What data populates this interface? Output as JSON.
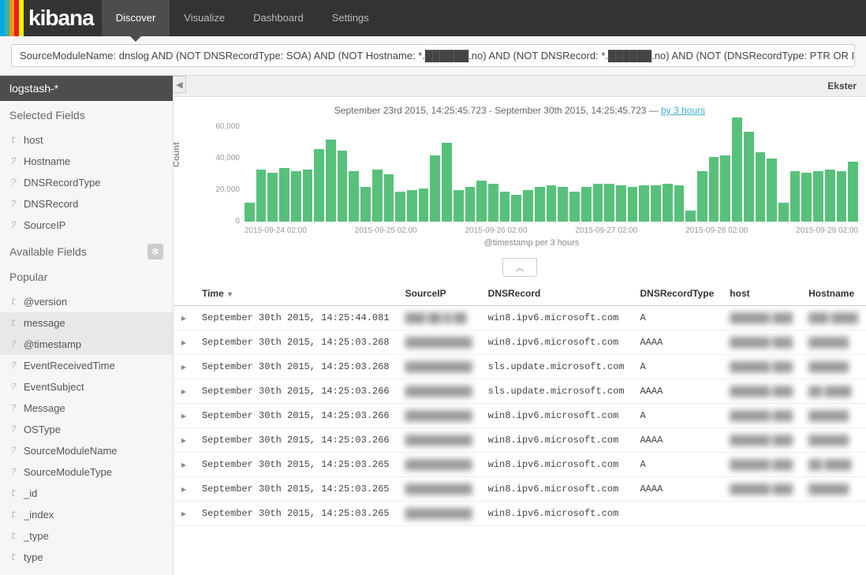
{
  "logo": {
    "stripes": [
      "#00a9e5",
      "#33b5a7",
      "#f7941e",
      "#ed1c24",
      "#fff200"
    ],
    "text": "kibana"
  },
  "nav": {
    "items": [
      "Discover",
      "Visualize",
      "Dashboard",
      "Settings"
    ],
    "activeIndex": 0
  },
  "query": "SourceModuleName: dnslog AND (NOT DNSRecordType: SOA) AND (NOT Hostname: *.██████.no) AND (NOT DNSRecord: *.██████.no) AND (NOT (DNSRecordType: PTR OR I",
  "indexPattern": "logstash-*",
  "subheader": {
    "right": "Ekster"
  },
  "sidebar": {
    "sections": {
      "selected": {
        "title": "Selected Fields",
        "items": [
          {
            "type": "t",
            "name": "host"
          },
          {
            "type": "?",
            "name": "Hostname"
          },
          {
            "type": "?",
            "name": "DNSRecordType"
          },
          {
            "type": "?",
            "name": "DNSRecord"
          },
          {
            "type": "?",
            "name": "SourceIP"
          }
        ]
      },
      "available": {
        "title": "Available Fields"
      },
      "popular": {
        "title": "Popular",
        "items": [
          {
            "type": "t",
            "name": "@version"
          },
          {
            "type": "t",
            "name": "message",
            "highlight": true
          },
          {
            "type": "?",
            "name": "@timestamp",
            "highlight": true
          },
          {
            "type": "?",
            "name": "EventReceivedTime"
          },
          {
            "type": "?",
            "name": "EventSubject"
          },
          {
            "type": "?",
            "name": "Message"
          },
          {
            "type": "?",
            "name": "OSType"
          },
          {
            "type": "?",
            "name": "SourceModuleName"
          },
          {
            "type": "?",
            "name": "SourceModuleType"
          },
          {
            "type": "t",
            "name": "_id"
          },
          {
            "type": "t",
            "name": "_index"
          },
          {
            "type": "t",
            "name": "_type"
          },
          {
            "type": "t",
            "name": "type"
          }
        ]
      }
    }
  },
  "timerange": {
    "text": "September 23rd 2015, 14:25:45.723 - September 30th 2015, 14:25:45.723 — ",
    "link": "by 3 hours"
  },
  "chart": {
    "type": "bar",
    "y_label": "Count",
    "x_label": "@timestamp per 3 hours",
    "ymax": 65000,
    "yticks": [
      {
        "v": 60000,
        "l": "60,000"
      },
      {
        "v": 40000,
        "l": "40,000"
      },
      {
        "v": 20000,
        "l": "20,000"
      },
      {
        "v": 0,
        "l": "0"
      }
    ],
    "xticks": [
      "2015-09-24 02:00",
      "2015-09-25 02:00",
      "2015-09-26 02:00",
      "2015-09-27 02:00",
      "2015-09-28 02:00",
      "2015-09-29 02:00"
    ],
    "bar_color": "#57c17b",
    "values": [
      12000,
      33000,
      31000,
      34000,
      32000,
      33000,
      46000,
      52000,
      45000,
      32000,
      22000,
      33000,
      30000,
      19000,
      20000,
      21000,
      42000,
      50000,
      20000,
      22000,
      26000,
      24000,
      19000,
      17000,
      20000,
      22000,
      23000,
      22000,
      19000,
      22000,
      24000,
      24000,
      23000,
      22000,
      23000,
      23000,
      24000,
      23000,
      7000,
      32000,
      41000,
      42000,
      66000,
      57000,
      44000,
      40000,
      12000,
      32000,
      31000,
      32000,
      33000,
      32000,
      38000
    ]
  },
  "table": {
    "columns": [
      "",
      "Time",
      "SourceIP",
      "DNSRecord",
      "DNSRecordType",
      "host",
      "Hostname"
    ],
    "sortCol": 1,
    "sortDir": "desc",
    "rows": [
      {
        "time": "September 30th 2015, 14:25:44.081",
        "sourceip": "███.██.█.██",
        "dnsrecord": "win8.ipv6.microsoft.com",
        "dnsrecordtype": "A",
        "host": "██████.███",
        "hostname": "███ ████"
      },
      {
        "time": "September 30th 2015, 14:25:03.268",
        "sourceip": "██████████",
        "dnsrecord": "win8.ipv6.microsoft.com",
        "dnsrecordtype": "AAAA",
        "host": "██████.███",
        "hostname": "██████"
      },
      {
        "time": "September 30th 2015, 14:25:03.268",
        "sourceip": "██████████",
        "dnsrecord": "sls.update.microsoft.com",
        "dnsrecordtype": "A",
        "host": "██████.███",
        "hostname": "██████"
      },
      {
        "time": "September 30th 2015, 14:25:03.266",
        "sourceip": "██████████",
        "dnsrecord": "sls.update.microsoft.com",
        "dnsrecordtype": "AAAA",
        "host": "██████.███",
        "hostname": "██ ████"
      },
      {
        "time": "September 30th 2015, 14:25:03.266",
        "sourceip": "██████████",
        "dnsrecord": "win8.ipv6.microsoft.com",
        "dnsrecordtype": "A",
        "host": "██████.███",
        "hostname": "██████"
      },
      {
        "time": "September 30th 2015, 14:25:03.266",
        "sourceip": "██████████",
        "dnsrecord": "win8.ipv6.microsoft.com",
        "dnsrecordtype": "AAAA",
        "host": "██████.███",
        "hostname": "██████"
      },
      {
        "time": "September 30th 2015, 14:25:03.265",
        "sourceip": "██████████",
        "dnsrecord": "win8.ipv6.microsoft.com",
        "dnsrecordtype": "A",
        "host": "██████.███",
        "hostname": "██ ████"
      },
      {
        "time": "September 30th 2015, 14:25:03.265",
        "sourceip": "██████████",
        "dnsrecord": "win8.ipv6.microsoft.com",
        "dnsrecordtype": "AAAA",
        "host": "██████.███",
        "hostname": "██████"
      },
      {
        "time": "September 30th 2015, 14:25:03.265",
        "sourceip": "██████████",
        "dnsrecord": "win8.ipv6.microsoft.com",
        "dnsrecordtype": "",
        "host": "",
        "hostname": ""
      }
    ]
  }
}
